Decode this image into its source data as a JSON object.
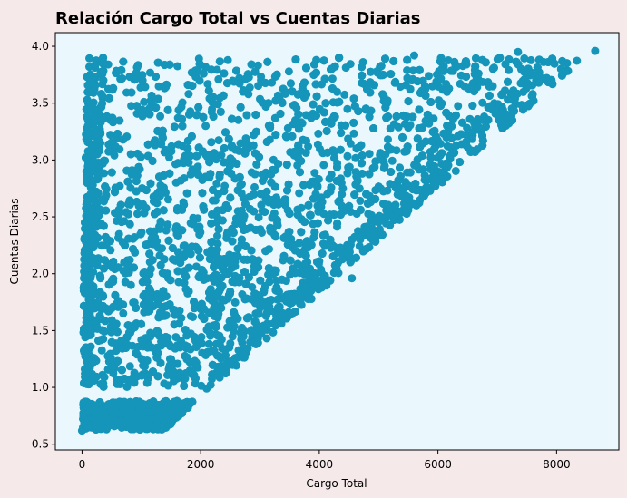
{
  "chart_data": {
    "type": "scatter",
    "title": "Relación Cargo Total vs Cuentas Diarias",
    "xlabel": "Cargo Total",
    "ylabel": "Cuentas Diarias",
    "xlim": [
      -450,
      9050
    ],
    "ylim": [
      0.45,
      4.12
    ],
    "xticks": [
      0,
      2000,
      4000,
      6000,
      8000
    ],
    "yticks": [
      0.5,
      1.0,
      1.5,
      2.0,
      2.5,
      3.0,
      3.5,
      4.0
    ],
    "xtick_labels": [
      "0",
      "2000",
      "4000",
      "6000",
      "8000"
    ],
    "ytick_labels": [
      "0.5",
      "1.0",
      "1.5",
      "2.0",
      "2.5",
      "3.0",
      "3.5",
      "4.0"
    ],
    "grid": false,
    "marker_color": "#1595b9",
    "plot_background": "#eaf8fd",
    "figure_background": "#f5e9ea",
    "point_count": 6000,
    "x_range_data": [
      18.8,
      8685
    ],
    "y_range_data": [
      0.61,
      3.96
    ],
    "annotated_points": [
      {
        "x": 1850,
        "y": 3.77
      },
      {
        "x": 2300,
        "y": 3.71
      },
      {
        "x": 3950,
        "y": 3.88
      },
      {
        "x": 5600,
        "y": 3.92
      },
      {
        "x": 7350,
        "y": 3.95
      },
      {
        "x": 8650,
        "y": 3.96
      },
      {
        "x": 2100,
        "y": 0.99
      },
      {
        "x": 2350,
        "y": 1.19
      },
      {
        "x": 4550,
        "y": 1.96
      },
      {
        "x": 0,
        "y": 0.62
      }
    ]
  }
}
